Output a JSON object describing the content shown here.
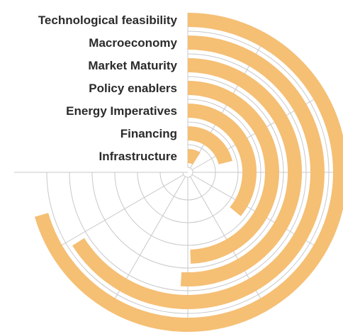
{
  "chart_data": {
    "type": "radial-bar",
    "title": "",
    "categories": [
      "Technological feasibility",
      "Macroeconomy",
      "Market Maturity",
      "Policy enablers",
      "Energy Imperatives",
      "Financing",
      "Infrastructure"
    ],
    "values": [
      94,
      88,
      68,
      66,
      48,
      28,
      12
    ],
    "max_value": 100,
    "grid": true,
    "bar_color": "#f5bf74",
    "grid_color": "#c8c8c8",
    "label_color": "#2b2b2b"
  }
}
